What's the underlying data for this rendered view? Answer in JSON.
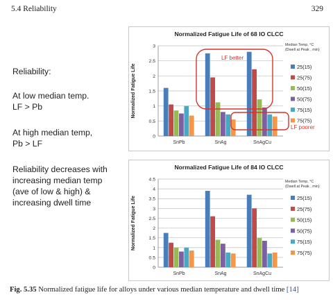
{
  "header": {
    "section": "5.4   Reliability",
    "page": "329"
  },
  "slide_text": [
    [
      "Reliability:"
    ],
    [
      "At low median temp.",
      "LF > Pb"
    ],
    [
      "At high median temp,",
      "Pb  > LF"
    ],
    [
      "Reliability decreases with",
      "increasing median temp",
      "(ave  of low & high) &",
      "increasing dwell time"
    ]
  ],
  "colors": {
    "25(15)": "#4a7ebb",
    "25(75)": "#be4b48",
    "50(15)": "#98b954",
    "50(75)": "#7d60a0",
    "75(15)": "#46aac5",
    "75(75)": "#f79646",
    "highlight": "#d9342b"
  },
  "legend_title": [
    "Median Temp, °C",
    "(Dwell at Peak , min)"
  ],
  "annotations": {
    "lf_better": "LF better",
    "lf_poorer": "LF poorer"
  },
  "chart_data": [
    {
      "type": "bar",
      "title": "Normalized Fatigue Life of 68 IO CLCC",
      "ylabel": "Normalized Fatigue Life",
      "ylim": [
        0,
        3
      ],
      "yticks": [
        "0",
        "0.5",
        "1",
        "1.5",
        "2",
        "2.5",
        "3"
      ],
      "categories": [
        "SnPb",
        "SnAg",
        "SnAgCu"
      ],
      "series": [
        {
          "name": "25(15)",
          "values": [
            1.6,
            2.75,
            2.8
          ]
        },
        {
          "name": "25(75)",
          "values": [
            1.05,
            1.95,
            2.22
          ]
        },
        {
          "name": "50(15)",
          "values": [
            0.85,
            1.12,
            1.22
          ]
        },
        {
          "name": "50(75)",
          "values": [
            0.75,
            0.8,
            0.95
          ]
        },
        {
          "name": "75(15)",
          "values": [
            1.0,
            0.72,
            0.72
          ]
        },
        {
          "name": "75(75)",
          "values": [
            0.68,
            0.55,
            0.65
          ]
        }
      ],
      "legend": "right"
    },
    {
      "type": "bar",
      "title": "Normalized Fatigue Life of 84 IO CLCC",
      "ylabel": "Normalized Fatigue Life",
      "ylim": [
        0,
        4.5
      ],
      "yticks": [
        "0",
        "0.5",
        "1",
        "1.5",
        "2",
        "2.5",
        "3",
        "3.5",
        "4",
        "4.5"
      ],
      "categories": [
        "SnPb",
        "SnAg",
        "SnAgCu"
      ],
      "series": [
        {
          "name": "25(15)",
          "values": [
            1.75,
            3.9,
            3.7
          ]
        },
        {
          "name": "25(75)",
          "values": [
            1.25,
            2.6,
            3.0
          ]
        },
        {
          "name": "50(15)",
          "values": [
            1.0,
            1.4,
            1.5
          ]
        },
        {
          "name": "50(75)",
          "values": [
            0.8,
            1.2,
            1.35
          ]
        },
        {
          "name": "75(15)",
          "values": [
            1.0,
            0.75,
            0.7
          ]
        },
        {
          "name": "75(75)",
          "values": [
            0.85,
            0.7,
            0.75
          ]
        }
      ],
      "legend": "right"
    }
  ],
  "caption": {
    "label": "Fig. 5.35",
    "text": "  Normalized fatigue life for alloys under various median temperature and dwell time ",
    "ref": "[14]"
  }
}
